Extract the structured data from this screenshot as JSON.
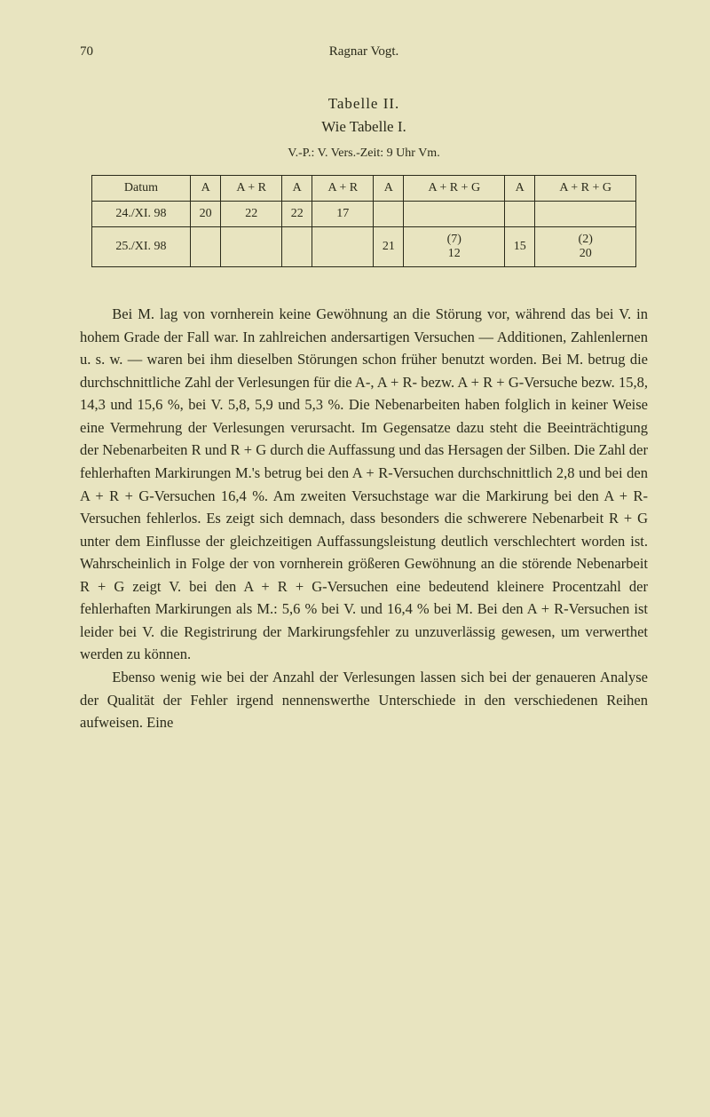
{
  "header": {
    "page_number": "70",
    "author": "Ragnar Vogt."
  },
  "table": {
    "title_line1": "Tabelle II.",
    "title_line2": "Wie Tabelle I.",
    "subtitle": "V.-P.: V.  Vers.-Zeit: 9 Uhr Vm.",
    "columns": [
      "Datum",
      "A",
      "A + R",
      "A",
      "A + R",
      "A",
      "A + R + G",
      "A",
      "A + R + G"
    ],
    "rows": [
      [
        "24./XI. 98",
        "20",
        "22",
        "22",
        "17",
        "",
        "",
        "",
        ""
      ],
      [
        "25./XI. 98",
        "",
        "",
        "",
        "",
        "21",
        "(7)\n12",
        "15",
        "(2)\n20"
      ]
    ]
  },
  "body": {
    "p1": "Bei M. lag von vornherein keine Gewöhnung an die Störung vor, während das bei V. in hohem Grade der Fall war. In zahlreichen andersartigen Versuchen — Additionen, Zahlenlernen u. s. w. — waren bei ihm dieselben Störungen schon früher benutzt worden. Bei M. betrug die durchschnittliche Zahl der Verlesungen für die A-, A + R- bezw. A + R + G-Versuche bezw. 15,8, 14,3 und 15,6 %, bei V. 5,8, 5,9 und 5,3 %. Die Nebenarbeiten haben folglich in keiner Weise eine Vermehrung der Verlesungen verursacht. Im Gegensatze dazu steht die Beeinträchtigung der Nebenarbeiten R und R + G durch die Auffassung und das Hersagen der Silben. Die Zahl der fehlerhaften Markirungen M.'s betrug bei den A + R-Versuchen durchschnittlich 2,8 und bei den A + R + G-Versuchen 16,4 %. Am zweiten Versuchstage war die Markirung bei den A + R-Versuchen fehlerlos. Es zeigt sich demnach, dass besonders die schwerere Nebenarbeit R + G unter dem Einflusse der gleichzeitigen Auffassungsleistung deutlich verschlechtert worden ist. Wahrscheinlich in Folge der von vornherein größeren Gewöhnung an die störende Nebenarbeit R + G zeigt V. bei den A + R + G-Versuchen eine bedeutend kleinere Procentzahl der fehlerhaften Markirungen als M.: 5,6 % bei V. und 16,4 % bei M. Bei den A + R-Versuchen ist leider bei V. die Registrirung der Markirungsfehler zu unzuverlässig gewesen, um verwerthet werden zu können.",
    "p2": "Ebenso wenig wie bei der Anzahl der Verlesungen lassen sich bei der genaueren Analyse der Qualität der Fehler irgend nennenswerthe Unterschiede in den verschiedenen Reihen aufweisen. Eine"
  },
  "styling": {
    "background_color": "#e8e4c0",
    "text_color": "#2a2a1a",
    "body_fontsize": 16.5,
    "body_lineheight": 1.55,
    "header_fontsize": 15,
    "title_fontsize": 17,
    "table_fontsize": 14,
    "table_border_color": "#2a2a1a",
    "font_family": "Georgia, serif"
  }
}
